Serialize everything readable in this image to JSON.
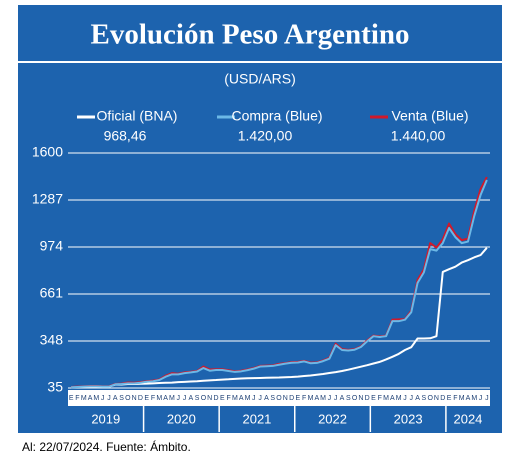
{
  "chart_data": {
    "type": "line",
    "title": "Evolución Peso Argentino",
    "subtitle": "(USD/ARS)",
    "footnote": "Al: 22/07/2024. Fuente: Ámbito.",
    "x_axis": {
      "years": [
        {
          "year": "2019",
          "months": [
            "E",
            "F",
            "M",
            "A",
            "M",
            "J",
            "J",
            "A",
            "S",
            "O",
            "N",
            "D"
          ]
        },
        {
          "year": "2020",
          "months": [
            "E",
            "F",
            "M",
            "A",
            "M",
            "J",
            "J",
            "A",
            "S",
            "O",
            "N",
            "D"
          ]
        },
        {
          "year": "2021",
          "months": [
            "E",
            "F",
            "M",
            "A",
            "M",
            "J",
            "J",
            "A",
            "S",
            "O",
            "N",
            "D"
          ]
        },
        {
          "year": "2022",
          "months": [
            "E",
            "F",
            "M",
            "A",
            "M",
            "J",
            "J",
            "A",
            "S",
            "O",
            "N",
            "D"
          ]
        },
        {
          "year": "2023",
          "months": [
            "E",
            "F",
            "M",
            "A",
            "M",
            "J",
            "J",
            "A",
            "S",
            "O",
            "N",
            "D"
          ]
        },
        {
          "year": "2024",
          "months": [
            "E",
            "F",
            "M",
            "A",
            "M",
            "J",
            "J"
          ]
        }
      ]
    },
    "ylim": [
      35,
      1600
    ],
    "yticks": [
      35,
      348,
      661,
      974,
      1287,
      1600
    ],
    "grid": true,
    "series": [
      {
        "name": "Oficial (BNA)",
        "color": "#ffffff",
        "latest_label": "968,46",
        "values": [
          39,
          40,
          42,
          44,
          46,
          45,
          44,
          58,
          58,
          62,
          62,
          63,
          64,
          66,
          68,
          70,
          71,
          74,
          76,
          78,
          80,
          83,
          86,
          88,
          91,
          93,
          96,
          98,
          100,
          101,
          102,
          103,
          104,
          105,
          107,
          108,
          111,
          115,
          118,
          123,
          128,
          135,
          141,
          148,
          157,
          167,
          177,
          187,
          198,
          209,
          225,
          243,
          262,
          288,
          307,
          365,
          365,
          366,
          380,
          808,
          826,
          843,
          870,
          886,
          905,
          920,
          968.46
        ]
      },
      {
        "name": "Venta (Blue)",
        "color": "#d0192b",
        "latest_label": "1.440,00",
        "values": [
          42,
          44,
          46,
          48,
          48,
          46,
          46,
          62,
          64,
          72,
          70,
          74,
          80,
          84,
          92,
          117,
          134,
          130,
          139,
          143,
          148,
          178,
          158,
          160,
          160,
          153,
          146,
          150,
          158,
          168,
          182,
          184,
          186,
          196,
          201,
          207,
          209,
          216,
          204,
          206,
          218,
          236,
          330,
          294,
          289,
          294,
          312,
          352,
          384,
          379,
          384,
          490,
          492,
          494,
          550,
          755,
          825,
          1000,
          970,
          1025,
          1130,
          1060,
          1020,
          1030,
          1215,
          1360,
          1440
        ]
      },
      {
        "name": "Compra (Blue)",
        "color": "#6cb8e6",
        "latest_label": "1.420,00",
        "values": [
          40,
          42,
          44,
          46,
          46,
          44,
          44,
          60,
          62,
          66,
          66,
          70,
          77,
          80,
          88,
          110,
          126,
          126,
          134,
          139,
          145,
          168,
          150,
          155,
          155,
          148,
          142,
          146,
          154,
          164,
          178,
          180,
          182,
          190,
          197,
          203,
          205,
          212,
          200,
          202,
          214,
          230,
          320,
          288,
          285,
          290,
          308,
          346,
          380,
          375,
          380,
          480,
          480,
          490,
          540,
          735,
          805,
          960,
          950,
          1000,
          1100,
          1040,
          1000,
          1010,
          1180,
          1320,
          1420
        ]
      }
    ]
  }
}
